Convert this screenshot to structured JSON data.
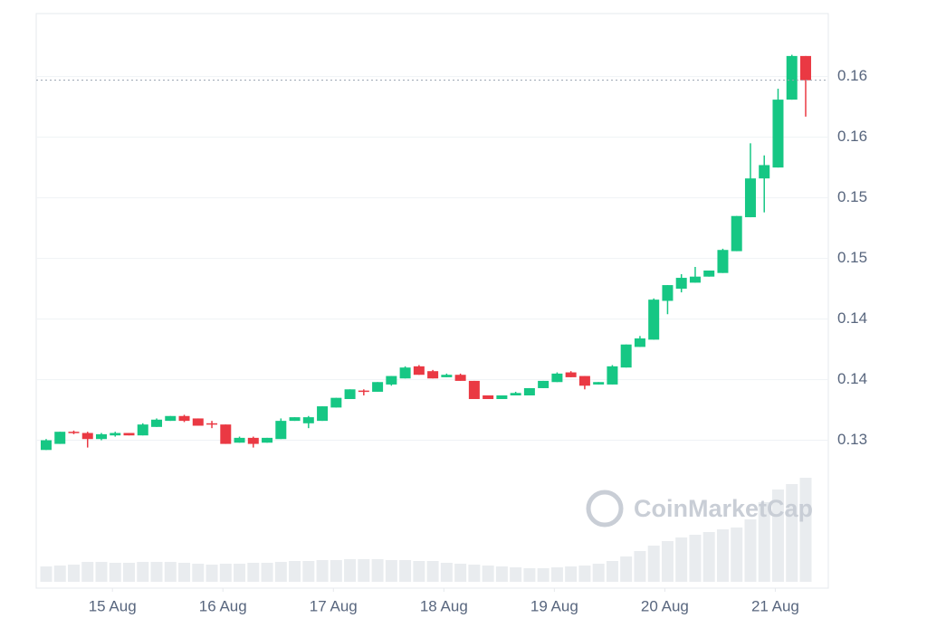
{
  "chart_data": {
    "type": "candlestick",
    "watermark": "CoinMarketCap",
    "up_color": "#16c784",
    "down_color": "#ea3943",
    "volume_color": "#e9ecef",
    "grid": true,
    "xlim": [
      14.31,
      21.48
    ],
    "xticks": [
      {
        "value": 15,
        "label": "15 Aug"
      },
      {
        "value": 16,
        "label": "16 Aug"
      },
      {
        "value": 17,
        "label": "17 Aug"
      },
      {
        "value": 18,
        "label": "18 Aug"
      },
      {
        "value": 19,
        "label": "19 Aug"
      },
      {
        "value": 20,
        "label": "20 Aug"
      },
      {
        "value": 21,
        "label": "21 Aug"
      }
    ],
    "ylim": [
      0.1178,
      0.1652
    ],
    "yticks": [
      {
        "value": 0.13,
        "label": "0.13"
      },
      {
        "value": 0.135,
        "label": "0.14"
      },
      {
        "value": 0.14,
        "label": "0.14"
      },
      {
        "value": 0.145,
        "label": "0.15"
      },
      {
        "value": 0.15,
        "label": "0.15"
      },
      {
        "value": 0.155,
        "label": "0.16"
      },
      {
        "value": 0.16,
        "label": "0.16"
      }
    ],
    "volume_lim": [
      0,
      130
    ],
    "x": [
      14.4,
      14.525,
      14.65,
      14.775,
      14.9,
      15.025,
      15.15,
      15.275,
      15.4,
      15.525,
      15.65,
      15.775,
      15.9,
      16.025,
      16.15,
      16.275,
      16.4,
      16.525,
      16.65,
      16.775,
      16.9,
      17.025,
      17.15,
      17.275,
      17.4,
      17.525,
      17.65,
      17.775,
      17.9,
      18.025,
      18.15,
      18.275,
      18.4,
      18.525,
      18.65,
      18.775,
      18.9,
      19.025,
      19.15,
      19.275,
      19.4,
      19.525,
      19.65,
      19.775,
      19.9,
      20.025,
      20.15,
      20.275,
      20.4,
      20.525,
      20.65,
      20.775,
      20.9,
      21.025,
      21.15,
      21.275
    ],
    "open": [
      0.1292,
      0.1297,
      0.1307,
      0.1306,
      0.1301,
      0.1304,
      0.1306,
      0.1304,
      0.1311,
      0.1316,
      0.132,
      0.1318,
      0.1314,
      0.1313,
      0.1298,
      0.1302,
      0.1298,
      0.1301,
      0.1316,
      0.1314,
      0.1316,
      0.1327,
      0.1334,
      0.1341,
      0.134,
      0.1346,
      0.1351,
      0.1361,
      0.1357,
      0.1352,
      0.1354,
      0.1349,
      0.1337,
      0.1334,
      0.1337,
      0.1337,
      0.1343,
      0.1348,
      0.1356,
      0.1353,
      0.1346,
      0.1346,
      0.136,
      0.1377,
      0.1383,
      0.1415,
      0.1425,
      0.143,
      0.1435,
      0.1438,
      0.1456,
      0.1484,
      0.1516,
      0.1525,
      0.1581,
      0.1617
    ],
    "high": [
      0.1301,
      0.1307,
      0.1308,
      0.1307,
      0.1306,
      0.1307,
      0.1306,
      0.1314,
      0.1318,
      0.132,
      0.1321,
      0.1318,
      0.1316,
      0.1313,
      0.1303,
      0.1303,
      0.1302,
      0.1318,
      0.1319,
      0.132,
      0.1328,
      0.1335,
      0.1342,
      0.1342,
      0.1348,
      0.1353,
      0.1361,
      0.1362,
      0.1358,
      0.1355,
      0.1355,
      0.1349,
      0.1337,
      0.1337,
      0.134,
      0.1343,
      0.1349,
      0.1356,
      0.1357,
      0.1353,
      0.1348,
      0.1362,
      0.1379,
      0.1386,
      0.1417,
      0.1428,
      0.1437,
      0.1443,
      0.144,
      0.1458,
      0.1485,
      0.1545,
      0.1535,
      0.159,
      0.1618,
      0.1617
    ],
    "low": [
      0.1292,
      0.1297,
      0.1305,
      0.1294,
      0.13,
      0.1303,
      0.1304,
      0.1304,
      0.1311,
      0.1316,
      0.1315,
      0.1312,
      0.131,
      0.1297,
      0.1298,
      0.1294,
      0.1298,
      0.1301,
      0.1316,
      0.131,
      0.1316,
      0.1327,
      0.1334,
      0.1337,
      0.134,
      0.1345,
      0.1351,
      0.1354,
      0.1351,
      0.1352,
      0.1349,
      0.1334,
      0.1334,
      0.1334,
      0.1337,
      0.1337,
      0.1343,
      0.1348,
      0.1352,
      0.1342,
      0.1346,
      0.1346,
      0.136,
      0.1377,
      0.1383,
      0.1404,
      0.1422,
      0.143,
      0.1435,
      0.1438,
      0.1456,
      0.1484,
      0.1488,
      0.1525,
      0.1581,
      0.1567
    ],
    "close": [
      0.13,
      0.1307,
      0.1306,
      0.1301,
      0.1305,
      0.1306,
      0.1304,
      0.1313,
      0.1317,
      0.132,
      0.1316,
      0.1312,
      0.1313,
      0.1297,
      0.1302,
      0.1297,
      0.1302,
      0.1316,
      0.1319,
      0.1319,
      0.1328,
      0.1335,
      0.1342,
      0.134,
      0.1348,
      0.1353,
      0.136,
      0.1354,
      0.1351,
      0.1354,
      0.1349,
      0.1334,
      0.1334,
      0.1337,
      0.1339,
      0.1343,
      0.1349,
      0.1355,
      0.1352,
      0.1345,
      0.1348,
      0.1361,
      0.1379,
      0.1384,
      0.1416,
      0.1428,
      0.1434,
      0.1435,
      0.144,
      0.1457,
      0.1485,
      0.1516,
      0.1527,
      0.1581,
      0.1617,
      0.1597
    ],
    "volume": [
      17,
      18,
      19,
      22,
      22,
      21,
      21,
      22,
      22,
      22,
      21,
      20,
      19,
      20,
      20,
      21,
      21,
      22,
      23,
      23,
      24,
      24,
      25,
      25,
      25,
      24,
      24,
      23,
      23,
      21,
      20,
      19,
      18,
      17,
      16,
      15,
      15,
      16,
      17,
      18,
      20,
      23,
      28,
      34,
      40,
      45,
      49,
      52,
      55,
      58,
      60,
      69,
      88,
      102,
      108,
      115
    ]
  }
}
